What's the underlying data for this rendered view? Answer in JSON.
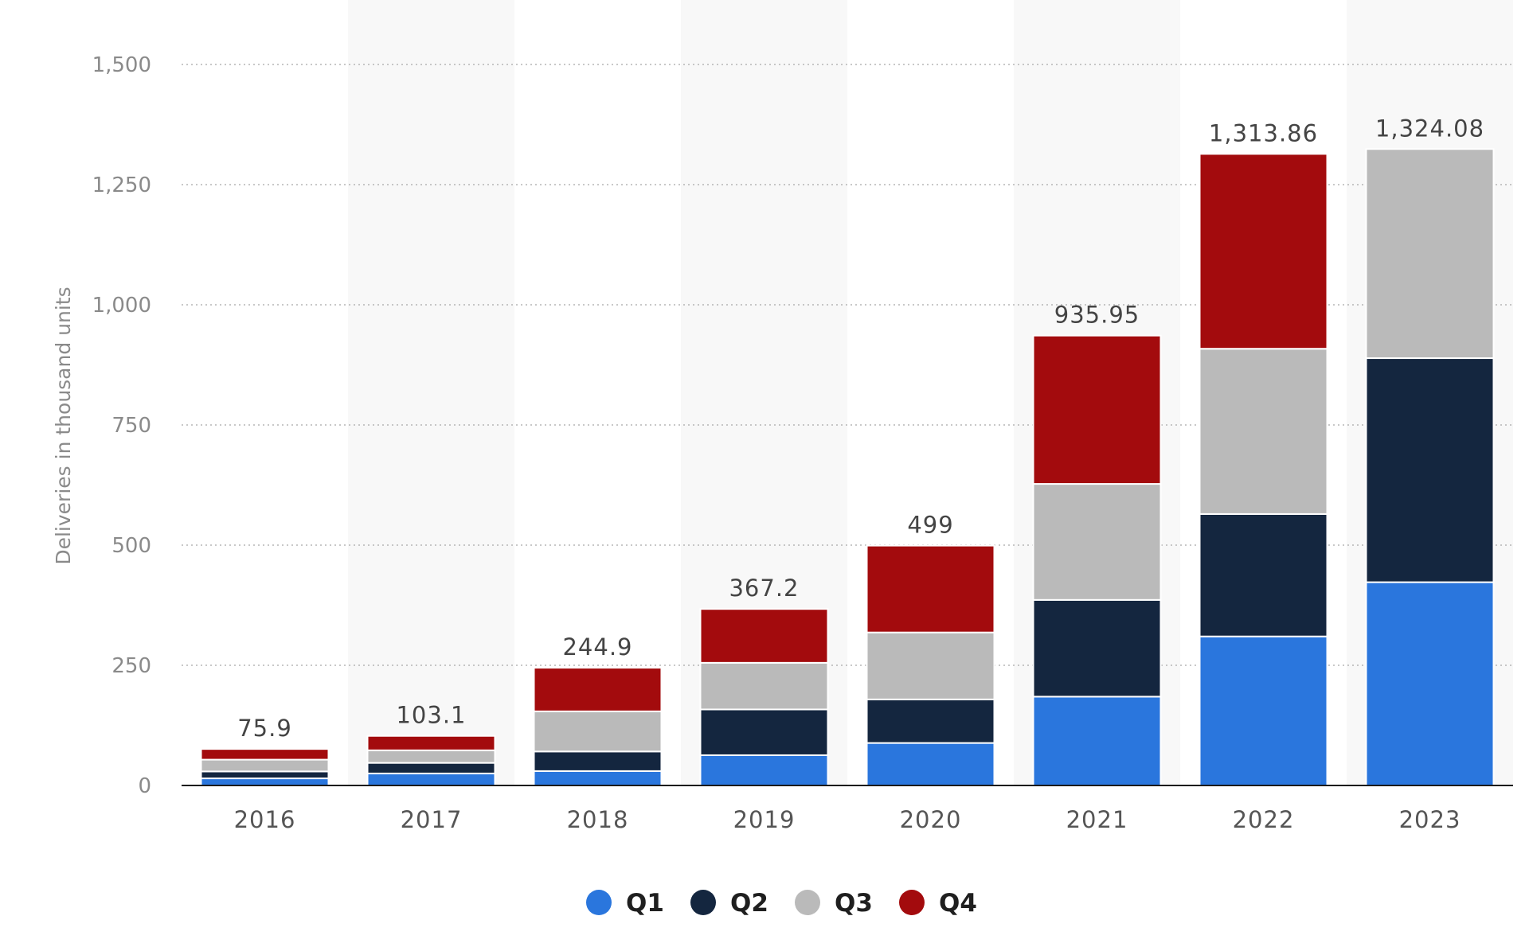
{
  "chart_data": {
    "type": "bar",
    "stacked": true,
    "title": "",
    "xlabel": "",
    "ylabel": "Deliveries in thousand units",
    "ylim": [
      0,
      1500
    ],
    "yticks": [
      0,
      250,
      500,
      750,
      1000,
      1250,
      1500
    ],
    "ytick_labels": [
      "0",
      "250",
      "500",
      "750",
      "1,000",
      "1,250",
      "1,500"
    ],
    "grid": true,
    "legend_position": "bottom-center",
    "categories": [
      "2016",
      "2017",
      "2018",
      "2019",
      "2020",
      "2021",
      "2022",
      "2023"
    ],
    "totals": [
      75.9,
      103.1,
      244.9,
      367.2,
      499,
      935.95,
      1313.86,
      1324.08
    ],
    "total_labels": [
      "75.9",
      "103.1",
      "244.9",
      "367.2",
      "499",
      "935.95",
      "1,313.86",
      "1,324.08"
    ],
    "series": [
      {
        "name": "Q1",
        "color": "#2a76dd",
        "values": [
          14.8,
          25.0,
          29.98,
          63.0,
          88.4,
          184.8,
          310.05,
          422.88
        ]
      },
      {
        "name": "Q2",
        "color": "#14263f",
        "values": [
          14.4,
          22.0,
          40.74,
          95.2,
          90.65,
          201.25,
          254.7,
          466.14
        ]
      },
      {
        "name": "Q3",
        "color": "#bababa",
        "values": [
          24.5,
          26.15,
          83.5,
          97.0,
          139.3,
          241.3,
          343.83,
          435.06
        ]
      },
      {
        "name": "Q4",
        "color": "#a30b0d",
        "values": [
          22.2,
          29.95,
          90.7,
          112.0,
          180.65,
          308.6,
          405.28,
          0
        ]
      }
    ]
  }
}
